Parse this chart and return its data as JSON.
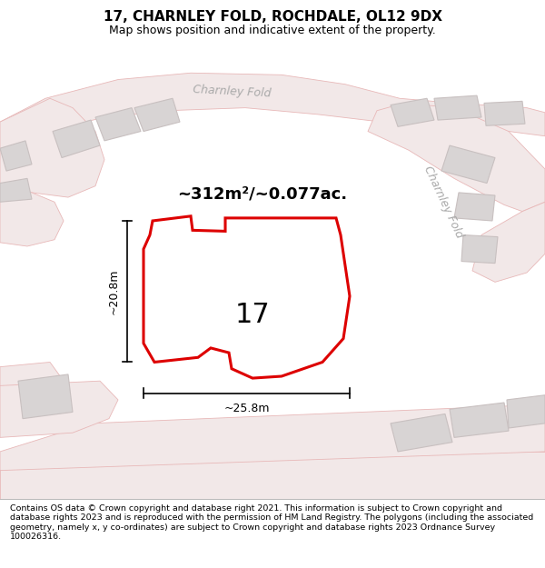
{
  "title": "17, CHARNLEY FOLD, ROCHDALE, OL12 9DX",
  "subtitle": "Map shows position and indicative extent of the property.",
  "footer": "Contains OS data © Crown copyright and database right 2021. This information is subject to Crown copyright and database rights 2023 and is reproduced with the permission of HM Land Registry. The polygons (including the associated geometry, namely x, y co-ordinates) are subject to Crown copyright and database rights 2023 Ordnance Survey 100026316.",
  "area_label": "~312m²/~0.077ac.",
  "number_label": "17",
  "dim_width": "~25.8m",
  "dim_height": "~20.8m",
  "map_bg": "#ffffff",
  "road_fill": "#f2e8e8",
  "road_edge": "#e8b8b8",
  "building_fill": "#d8d4d4",
  "building_edge": "#c8c0c0",
  "highlight_color": "#dd0000",
  "inner_building_fill": "#d0cccc",
  "inner_building_edge": "#b8b0b0",
  "street_label_color": "#aaaaaa",
  "title_fontsize": 11,
  "subtitle_fontsize": 9,
  "footer_fontsize": 6.8
}
